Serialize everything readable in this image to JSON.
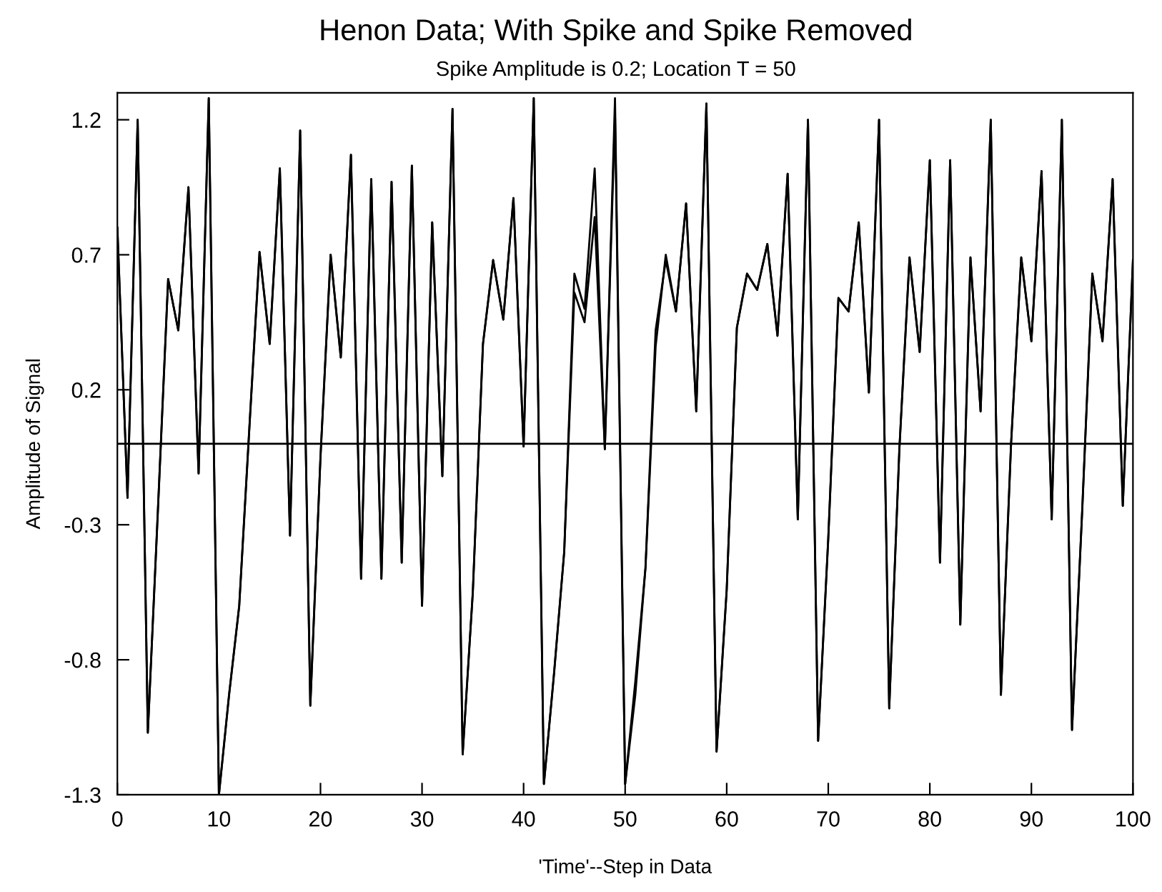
{
  "chart_data": {
    "type": "line",
    "title": "Henon Data; With Spike and Spike Removed",
    "subtitle": "Spike Amplitude is 0.2; Location T = 50",
    "xlabel": "'Time'--Step in Data",
    "ylabel": "Amplitude of Signal",
    "x": [
      0,
      1,
      2,
      3,
      4,
      5,
      6,
      7,
      8,
      9,
      10,
      11,
      12,
      13,
      14,
      15,
      16,
      17,
      18,
      19,
      20,
      21,
      22,
      23,
      24,
      25,
      26,
      27,
      28,
      29,
      30,
      31,
      32,
      33,
      34,
      35,
      36,
      37,
      38,
      39,
      40,
      41,
      42,
      43,
      44,
      45,
      46,
      47,
      48,
      49,
      50,
      51,
      52,
      53,
      54,
      55,
      56,
      57,
      58,
      59,
      60,
      61,
      62,
      63,
      64,
      65,
      66,
      67,
      68,
      69,
      70,
      71,
      72,
      73,
      74,
      75,
      76,
      77,
      78,
      79,
      80,
      81,
      82,
      83,
      84,
      85,
      86,
      87,
      88,
      89,
      90,
      91,
      92,
      93,
      94,
      95,
      96,
      97,
      98,
      99,
      100
    ],
    "series": [
      {
        "color": "#000000",
        "values": [
          0.8,
          -0.2,
          1.2,
          -1.07,
          -0.24,
          0.61,
          0.42,
          0.95,
          -0.11,
          1.28,
          -1.3,
          -0.93,
          -0.6,
          0.06,
          0.71,
          0.37,
          1.02,
          -0.34,
          1.16,
          -0.97,
          -0.05,
          0.7,
          0.32,
          1.07,
          -0.5,
          0.98,
          -0.5,
          0.97,
          -0.44,
          1.03,
          -0.6,
          0.82,
          -0.12,
          1.24,
          -1.15,
          -0.55,
          0.37,
          0.68,
          0.46,
          0.91,
          -0.01,
          1.28,
          -1.26,
          -0.85,
          -0.4,
          0.63,
          0.5,
          1.02,
          -0.02,
          1.28,
          -1.26,
          -0.93,
          -0.46,
          0.36,
          0.7,
          0.49,
          0.89,
          0.12,
          1.26,
          -1.14,
          -0.54,
          0.43,
          0.63,
          0.57,
          0.74,
          0.4,
          1.0,
          -0.28,
          1.2,
          -1.1,
          -0.35,
          0.54,
          0.49,
          0.82,
          0.19,
          1.2,
          -0.98,
          -0.02,
          0.69,
          0.34,
          1.05,
          -0.44,
          1.05,
          -0.67,
          0.69,
          0.12,
          1.2,
          -0.93,
          0.0,
          0.69,
          0.38,
          1.01,
          -0.28,
          1.2,
          -1.06,
          -0.25,
          0.63,
          0.38,
          0.98,
          -0.23,
          0.68
        ]
      },
      {
        "color": "#000000",
        "values": [
          0.8,
          -0.2,
          1.2,
          -1.07,
          -0.24,
          0.61,
          0.42,
          0.95,
          -0.11,
          1.28,
          -1.3,
          -0.93,
          -0.6,
          0.06,
          0.71,
          0.37,
          1.02,
          -0.34,
          1.16,
          -0.97,
          -0.05,
          0.7,
          0.32,
          1.07,
          -0.5,
          0.98,
          -0.5,
          0.97,
          -0.44,
          1.03,
          -0.6,
          0.82,
          -0.12,
          1.24,
          -1.15,
          -0.55,
          0.37,
          0.68,
          0.46,
          0.91,
          -0.01,
          1.28,
          -1.26,
          -0.85,
          -0.4,
          0.56,
          0.45,
          0.84,
          -0.02,
          1.22,
          -1.26,
          -0.88,
          -0.46,
          0.42,
          0.68,
          0.49,
          0.89,
          0.12,
          1.26,
          -1.14,
          -0.54,
          0.43,
          0.63,
          0.57,
          0.74,
          0.4,
          1.0,
          -0.28,
          1.2,
          -1.1,
          -0.35,
          0.54,
          0.49,
          0.82,
          0.19,
          1.2,
          -0.98,
          -0.02,
          0.69,
          0.34,
          1.05,
          -0.44,
          1.05,
          -0.67,
          0.69,
          0.12,
          1.2,
          -0.93,
          0.0,
          0.69,
          0.38,
          1.01,
          -0.28,
          1.2,
          -1.06,
          -0.25,
          0.63,
          0.38,
          0.98,
          -0.23,
          0.68
        ]
      }
    ],
    "xlim": [
      0,
      100
    ],
    "xticks": [
      0,
      10,
      20,
      30,
      40,
      50,
      60,
      70,
      80,
      90,
      100
    ],
    "ylim": [
      -1.3,
      1.3
    ],
    "yticks": [
      -1.3,
      -0.8,
      -0.3,
      0.2,
      0.7,
      1.2
    ],
    "ref_lines": [
      {
        "axis": "y",
        "value": 0,
        "color": "#000000"
      }
    ],
    "grid": false,
    "legend": false
  }
}
